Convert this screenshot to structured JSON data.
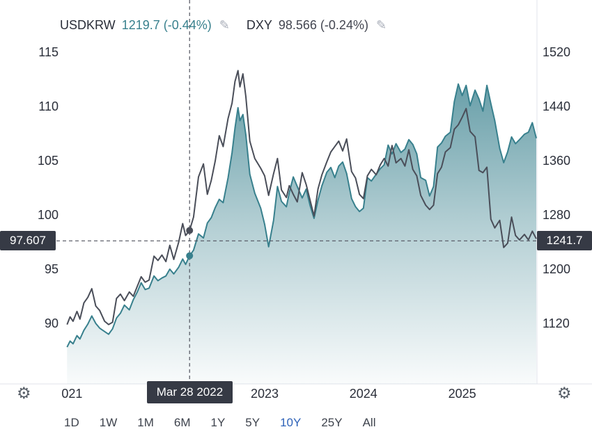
{
  "legend": {
    "series1_name": "USDKRW",
    "series1_value": "1219.7 (-0.44%)",
    "series2_name": "DXY",
    "series2_value": "98.566 (-0.24%)",
    "edit_icon": "✎"
  },
  "toolbar": {
    "ranges": [
      "1D",
      "1W",
      "1M",
      "6M",
      "1Y",
      "5Y",
      "10Y",
      "25Y",
      "All"
    ],
    "active_range": "10Y",
    "gear_icon": "⚙"
  },
  "colors": {
    "usdkrw": "#38808d",
    "dxy": "#4a4e59",
    "label_box": "#363a45",
    "active_range": "#2e62b8",
    "crosshair": "#50535e",
    "pane_border": "#e0e3eb"
  },
  "chart_data": {
    "type": "line",
    "title": "",
    "legend_entries": [
      "USDKRW",
      "DXY"
    ],
    "axes": {
      "left": {
        "series": "DXY",
        "min": 90,
        "max": 115,
        "ticks": [
          "115",
          "110",
          "105",
          "100",
          "95",
          "90"
        ],
        "tick_values": [
          115,
          110,
          105,
          100,
          95,
          90
        ]
      },
      "right": {
        "series": "USDKRW",
        "min": 1120,
        "max": 1520,
        "ticks": [
          "1520",
          "1440",
          "1360",
          "1280",
          "1200",
          "1120"
        ],
        "tick_values": [
          1520,
          1440,
          1360,
          1280,
          1200,
          1120
        ]
      },
      "x": {
        "min": 2020.92,
        "max": 2025.75,
        "ticks": [
          {
            "pos": 2021.05,
            "label": "021"
          },
          {
            "pos": 2023,
            "label": "2023"
          },
          {
            "pos": 2024,
            "label": "2024"
          },
          {
            "pos": 2025,
            "label": "2025"
          }
        ]
      }
    },
    "crosshair": {
      "date_label": "Mar 28 2022",
      "x_year": 2022.24,
      "left_label": "97.607",
      "left_value": 97.607,
      "right_label": "1241.7",
      "right_value": 1241.7,
      "dxy_value": 98.566,
      "usdkrw_value": 1219.7
    },
    "series": [
      {
        "name": "USDKRW",
        "axis": "right",
        "color": "#38808d",
        "area": true,
        "points": [
          [
            2021.0,
            1085
          ],
          [
            2021.03,
            1094
          ],
          [
            2021.06,
            1090
          ],
          [
            2021.1,
            1102
          ],
          [
            2021.13,
            1097
          ],
          [
            2021.17,
            1110
          ],
          [
            2021.21,
            1119
          ],
          [
            2021.25,
            1131
          ],
          [
            2021.29,
            1120
          ],
          [
            2021.33,
            1113
          ],
          [
            2021.38,
            1108
          ],
          [
            2021.42,
            1104
          ],
          [
            2021.46,
            1112
          ],
          [
            2021.5,
            1128
          ],
          [
            2021.54,
            1135
          ],
          [
            2021.58,
            1147
          ],
          [
            2021.63,
            1140
          ],
          [
            2021.67,
            1155
          ],
          [
            2021.71,
            1166
          ],
          [
            2021.75,
            1180
          ],
          [
            2021.79,
            1170
          ],
          [
            2021.83,
            1172
          ],
          [
            2021.88,
            1190
          ],
          [
            2021.92,
            1183
          ],
          [
            2021.96,
            1187
          ],
          [
            2022.0,
            1190
          ],
          [
            2022.04,
            1200
          ],
          [
            2022.08,
            1193
          ],
          [
            2022.13,
            1203
          ],
          [
            2022.17,
            1215
          ],
          [
            2022.2,
            1207
          ],
          [
            2022.24,
            1219.7
          ],
          [
            2022.28,
            1228
          ],
          [
            2022.33,
            1252
          ],
          [
            2022.38,
            1246
          ],
          [
            2022.42,
            1268
          ],
          [
            2022.46,
            1276
          ],
          [
            2022.5,
            1291
          ],
          [
            2022.54,
            1303
          ],
          [
            2022.58,
            1298
          ],
          [
            2022.63,
            1335
          ],
          [
            2022.67,
            1372
          ],
          [
            2022.7,
            1408
          ],
          [
            2022.73,
            1438
          ],
          [
            2022.75,
            1419
          ],
          [
            2022.78,
            1428
          ],
          [
            2022.81,
            1398
          ],
          [
            2022.85,
            1340
          ],
          [
            2022.9,
            1312
          ],
          [
            2022.96,
            1290
          ],
          [
            2023.0,
            1266
          ],
          [
            2023.04,
            1233
          ],
          [
            2023.09,
            1272
          ],
          [
            2023.13,
            1322
          ],
          [
            2023.17,
            1300
          ],
          [
            2023.22,
            1292
          ],
          [
            2023.25,
            1313
          ],
          [
            2023.29,
            1336
          ],
          [
            2023.33,
            1322
          ],
          [
            2023.38,
            1305
          ],
          [
            2023.42,
            1318
          ],
          [
            2023.46,
            1294
          ],
          [
            2023.5,
            1275
          ],
          [
            2023.54,
            1302
          ],
          [
            2023.58,
            1323
          ],
          [
            2023.63,
            1343
          ],
          [
            2023.67,
            1350
          ],
          [
            2023.71,
            1335
          ],
          [
            2023.75,
            1352
          ],
          [
            2023.79,
            1358
          ],
          [
            2023.83,
            1341
          ],
          [
            2023.88,
            1304
          ],
          [
            2023.92,
            1292
          ],
          [
            2023.96,
            1285
          ],
          [
            2024.0,
            1290
          ],
          [
            2024.04,
            1335
          ],
          [
            2024.08,
            1330
          ],
          [
            2024.13,
            1340
          ],
          [
            2024.17,
            1348
          ],
          [
            2024.21,
            1354
          ],
          [
            2024.25,
            1383
          ],
          [
            2024.29,
            1370
          ],
          [
            2024.33,
            1385
          ],
          [
            2024.38,
            1372
          ],
          [
            2024.42,
            1377
          ],
          [
            2024.46,
            1391
          ],
          [
            2024.5,
            1384
          ],
          [
            2024.54,
            1370
          ],
          [
            2024.58,
            1335
          ],
          [
            2024.63,
            1331
          ],
          [
            2024.67,
            1308
          ],
          [
            2024.71,
            1322
          ],
          [
            2024.75,
            1380
          ],
          [
            2024.79,
            1386
          ],
          [
            2024.83,
            1396
          ],
          [
            2024.88,
            1402
          ],
          [
            2024.92,
            1447
          ],
          [
            2024.96,
            1473
          ],
          [
            2025.0,
            1456
          ],
          [
            2025.04,
            1471
          ],
          [
            2025.08,
            1441
          ],
          [
            2025.13,
            1464
          ],
          [
            2025.17,
            1451
          ],
          [
            2025.21,
            1433
          ],
          [
            2025.25,
            1471
          ],
          [
            2025.29,
            1444
          ],
          [
            2025.33,
            1419
          ],
          [
            2025.38,
            1378
          ],
          [
            2025.42,
            1357
          ],
          [
            2025.46,
            1373
          ],
          [
            2025.5,
            1395
          ],
          [
            2025.54,
            1385
          ],
          [
            2025.58,
            1391
          ],
          [
            2025.63,
            1399
          ],
          [
            2025.67,
            1402
          ],
          [
            2025.71,
            1416
          ],
          [
            2025.75,
            1393
          ]
        ]
      },
      {
        "name": "DXY",
        "axis": "left",
        "color": "#4a4e59",
        "area": false,
        "points": [
          [
            2021.0,
            89.9
          ],
          [
            2021.03,
            90.6
          ],
          [
            2021.06,
            90.2
          ],
          [
            2021.1,
            91.1
          ],
          [
            2021.13,
            90.4
          ],
          [
            2021.17,
            91.9
          ],
          [
            2021.21,
            92.4
          ],
          [
            2021.25,
            93.2
          ],
          [
            2021.29,
            91.6
          ],
          [
            2021.33,
            91.2
          ],
          [
            2021.38,
            90.2
          ],
          [
            2021.42,
            89.9
          ],
          [
            2021.46,
            90.1
          ],
          [
            2021.5,
            92.3
          ],
          [
            2021.54,
            92.7
          ],
          [
            2021.58,
            92.1
          ],
          [
            2021.63,
            92.9
          ],
          [
            2021.67,
            92.5
          ],
          [
            2021.71,
            93.4
          ],
          [
            2021.75,
            94.3
          ],
          [
            2021.79,
            93.8
          ],
          [
            2021.83,
            94.0
          ],
          [
            2021.88,
            96.2
          ],
          [
            2021.92,
            95.8
          ],
          [
            2021.96,
            96.3
          ],
          [
            2022.0,
            95.7
          ],
          [
            2022.04,
            97.2
          ],
          [
            2022.08,
            95.9
          ],
          [
            2022.13,
            97.5
          ],
          [
            2022.17,
            99.2
          ],
          [
            2022.2,
            98.1
          ],
          [
            2022.24,
            98.566
          ],
          [
            2022.28,
            99.8
          ],
          [
            2022.33,
            103.5
          ],
          [
            2022.38,
            104.7
          ],
          [
            2022.42,
            101.9
          ],
          [
            2022.46,
            103.2
          ],
          [
            2022.5,
            105.0
          ],
          [
            2022.54,
            107.3
          ],
          [
            2022.58,
            106.3
          ],
          [
            2022.63,
            108.9
          ],
          [
            2022.67,
            110.3
          ],
          [
            2022.7,
            112.3
          ],
          [
            2022.73,
            113.3
          ],
          [
            2022.75,
            111.8
          ],
          [
            2022.78,
            113.0
          ],
          [
            2022.81,
            110.9
          ],
          [
            2022.85,
            106.8
          ],
          [
            2022.9,
            105.2
          ],
          [
            2022.96,
            104.3
          ],
          [
            2023.0,
            103.6
          ],
          [
            2023.04,
            101.8
          ],
          [
            2023.09,
            103.8
          ],
          [
            2023.13,
            105.2
          ],
          [
            2023.17,
            102.3
          ],
          [
            2023.22,
            101.6
          ],
          [
            2023.25,
            102.7
          ],
          [
            2023.29,
            101.9
          ],
          [
            2023.33,
            101.2
          ],
          [
            2023.38,
            103.9
          ],
          [
            2023.42,
            102.8
          ],
          [
            2023.5,
            99.9
          ],
          [
            2023.54,
            102.4
          ],
          [
            2023.58,
            103.7
          ],
          [
            2023.63,
            104.9
          ],
          [
            2023.67,
            105.8
          ],
          [
            2023.71,
            106.3
          ],
          [
            2023.75,
            106.8
          ],
          [
            2023.79,
            105.9
          ],
          [
            2023.83,
            107.0
          ],
          [
            2023.88,
            104.0
          ],
          [
            2023.92,
            103.4
          ],
          [
            2023.96,
            101.9
          ],
          [
            2024.0,
            101.5
          ],
          [
            2024.04,
            103.6
          ],
          [
            2024.08,
            104.2
          ],
          [
            2024.13,
            103.7
          ],
          [
            2024.17,
            104.6
          ],
          [
            2024.21,
            105.2
          ],
          [
            2024.25,
            104.5
          ],
          [
            2024.29,
            106.4
          ],
          [
            2024.33,
            104.8
          ],
          [
            2024.38,
            105.2
          ],
          [
            2024.42,
            104.5
          ],
          [
            2024.46,
            106.0
          ],
          [
            2024.5,
            104.2
          ],
          [
            2024.54,
            103.6
          ],
          [
            2024.58,
            101.8
          ],
          [
            2024.63,
            100.9
          ],
          [
            2024.67,
            100.5
          ],
          [
            2024.71,
            100.9
          ],
          [
            2024.75,
            103.8
          ],
          [
            2024.79,
            104.4
          ],
          [
            2024.83,
            105.8
          ],
          [
            2024.88,
            106.2
          ],
          [
            2024.92,
            107.9
          ],
          [
            2024.96,
            108.3
          ],
          [
            2025.0,
            109.0
          ],
          [
            2025.04,
            109.8
          ],
          [
            2025.08,
            107.7
          ],
          [
            2025.13,
            107.2
          ],
          [
            2025.17,
            104.1
          ],
          [
            2025.21,
            103.9
          ],
          [
            2025.25,
            104.4
          ],
          [
            2025.29,
            99.6
          ],
          [
            2025.33,
            98.8
          ],
          [
            2025.38,
            99.5
          ],
          [
            2025.42,
            97.0
          ],
          [
            2025.46,
            97.4
          ],
          [
            2025.5,
            99.8
          ],
          [
            2025.54,
            98.1
          ],
          [
            2025.58,
            97.7
          ],
          [
            2025.63,
            98.2
          ],
          [
            2025.67,
            97.7
          ],
          [
            2025.71,
            98.5
          ],
          [
            2025.75,
            97.8
          ]
        ]
      }
    ]
  }
}
